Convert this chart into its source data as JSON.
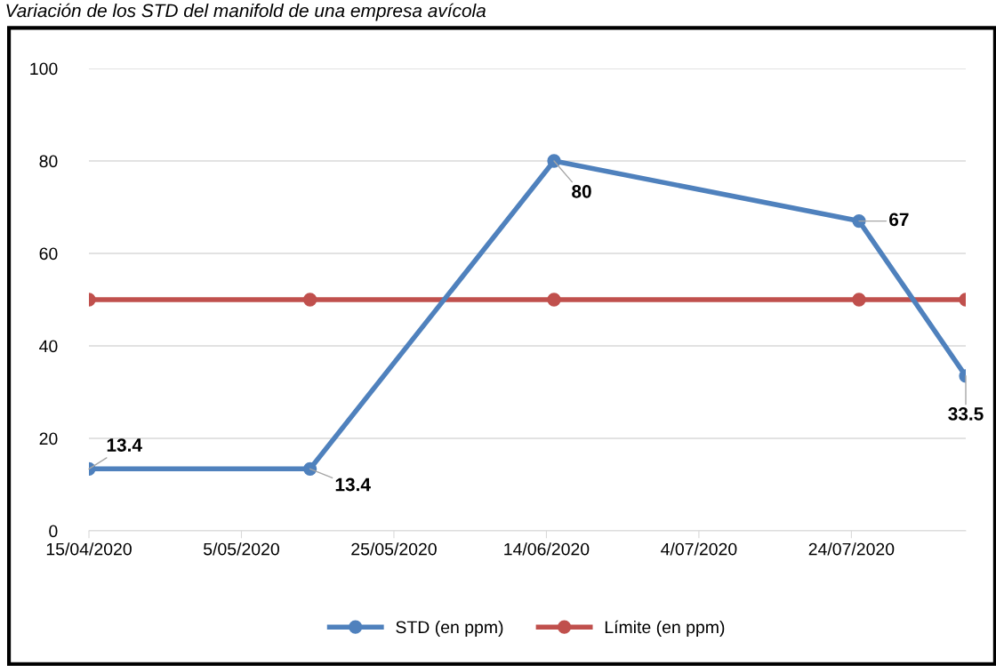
{
  "chart_data": {
    "type": "line",
    "title": "Variación de los STD del manifold de una empresa avícola",
    "x": [
      "2020-04-15",
      "2020-05-14",
      "2020-06-15",
      "2020-07-25",
      "2020-08-08"
    ],
    "series": [
      {
        "name": "STD (en ppm)",
        "color": "#4f81bd",
        "values": [
          13.4,
          13.4,
          80,
          67,
          33.5
        ],
        "value_labels": [
          "13.4",
          "13.4",
          "80",
          "67",
          "33.5"
        ]
      },
      {
        "name": "Límite (en ppm)",
        "color": "#c0504d",
        "values": [
          50,
          50,
          50,
          50,
          50
        ]
      }
    ],
    "xlim": [
      "2020-04-15",
      "2020-08-08"
    ],
    "xticks": [
      {
        "value": "2020-04-15",
        "label": "15/04/2020"
      },
      {
        "value": "2020-05-05",
        "label": "5/05/2020"
      },
      {
        "value": "2020-05-25",
        "label": "25/05/2020"
      },
      {
        "value": "2020-06-14",
        "label": "14/06/2020"
      },
      {
        "value": "2020-07-04",
        "label": "4/07/2020"
      },
      {
        "value": "2020-07-24",
        "label": "24/07/2020"
      }
    ],
    "ylim": [
      0,
      100
    ],
    "yticks": [
      0,
      20,
      40,
      60,
      80,
      100
    ],
    "grid": "y",
    "legend": "bottom",
    "marker": "circle",
    "line_style": "solid"
  }
}
